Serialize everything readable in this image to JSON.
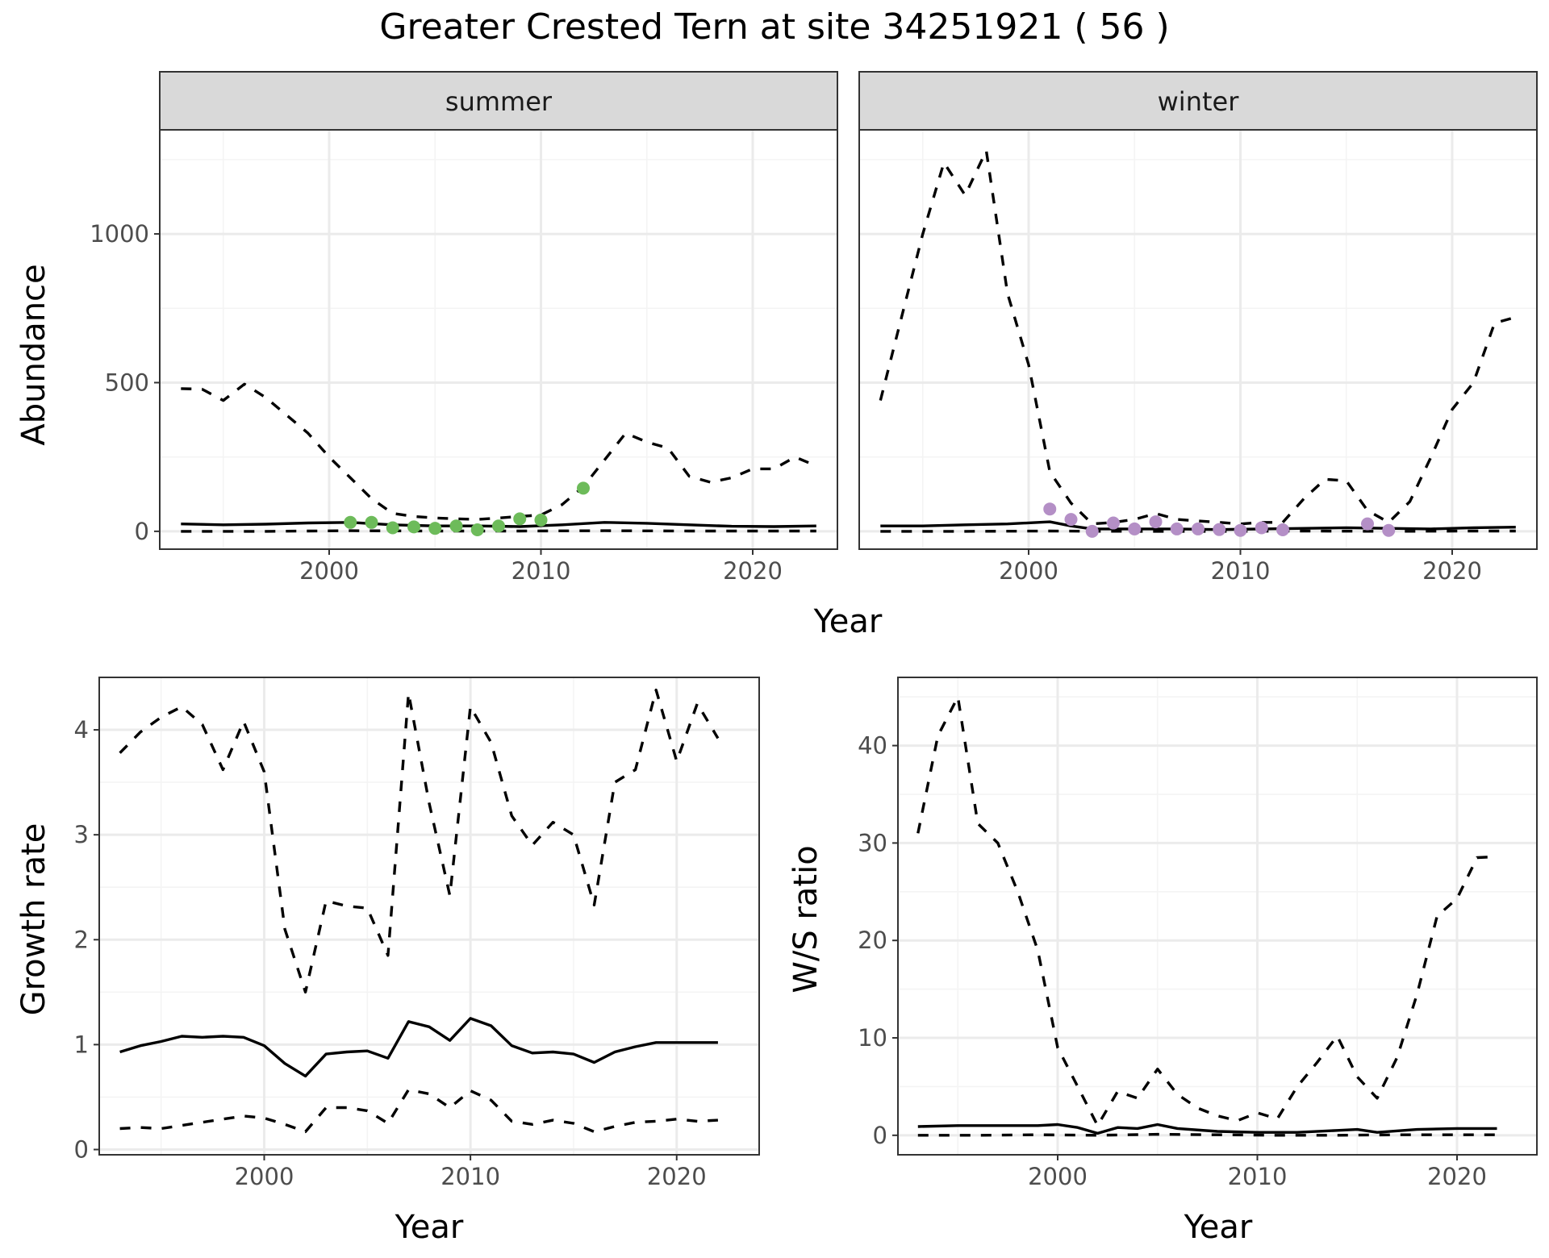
{
  "figure": {
    "title": "Greater Crested Tern at site 34251921 ( 56 )"
  },
  "colors": {
    "summer_points": "#6dbb5a",
    "winter_points": "#b48fc6",
    "lines": "#000000",
    "strip_bg": "#d9d9d9"
  },
  "chart_data": [
    {
      "id": "abundance_summer",
      "type": "line",
      "facet_label": "summer",
      "xlabel": "",
      "ylabel": "Abundance",
      "xlim": [
        1992,
        2024
      ],
      "ylim": [
        -60,
        1350
      ],
      "x_ticks": [
        2000,
        2010,
        2020
      ],
      "y_ticks": [
        0,
        500,
        1000
      ],
      "grid": true,
      "series": [
        {
          "role": "estimate",
          "style": "solid",
          "x": [
            1993,
            1995,
            1997,
            1999,
            2001,
            2003,
            2005,
            2007,
            2009,
            2011,
            2013,
            2015,
            2017,
            2019,
            2021,
            2023
          ],
          "y": [
            25,
            22,
            24,
            28,
            30,
            22,
            18,
            18,
            16,
            22,
            30,
            27,
            22,
            17,
            16,
            18
          ]
        },
        {
          "role": "upper",
          "style": "dashed",
          "x": [
            1993,
            1994,
            1995,
            1996,
            1997,
            1998,
            1999,
            2000,
            2001,
            2002,
            2003,
            2004,
            2005,
            2006,
            2007,
            2008,
            2009,
            2010,
            2011,
            2012,
            2013,
            2014,
            2015,
            2016,
            2017,
            2018,
            2019,
            2020,
            2021,
            2022,
            2023
          ],
          "y": [
            480,
            478,
            440,
            495,
            450,
            390,
            330,
            250,
            180,
            110,
            60,
            50,
            45,
            42,
            40,
            45,
            50,
            55,
            90,
            150,
            240,
            330,
            300,
            280,
            185,
            165,
            180,
            210,
            210,
            250,
            220
          ]
        },
        {
          "role": "lower",
          "style": "dashed",
          "x": [
            1993,
            1997,
            2001,
            2005,
            2009,
            2013,
            2017,
            2021,
            2023
          ],
          "y": [
            0,
            0,
            2,
            1,
            1,
            2,
            1,
            1,
            1
          ]
        },
        {
          "role": "observed",
          "style": "points",
          "x": [
            2001,
            2002,
            2003,
            2004,
            2005,
            2006,
            2007,
            2008,
            2009,
            2010,
            2012
          ],
          "y": [
            30,
            30,
            12,
            15,
            10,
            18,
            5,
            18,
            42,
            38,
            145
          ]
        }
      ]
    },
    {
      "id": "abundance_winter",
      "type": "line",
      "facet_label": "winter",
      "xlabel": "",
      "ylabel": "",
      "xlim": [
        1992,
        2024
      ],
      "ylim": [
        -60,
        1350
      ],
      "x_ticks": [
        2000,
        2010,
        2020
      ],
      "y_ticks": [
        0,
        500,
        1000
      ],
      "grid": true,
      "series": [
        {
          "role": "estimate",
          "style": "solid",
          "x": [
            1993,
            1995,
            1997,
            1999,
            2001,
            2002,
            2003,
            2005,
            2007,
            2009,
            2011,
            2013,
            2015,
            2017,
            2019,
            2021,
            2023
          ],
          "y": [
            18,
            18,
            22,
            25,
            32,
            18,
            8,
            8,
            8,
            6,
            8,
            10,
            12,
            10,
            8,
            12,
            14
          ]
        },
        {
          "role": "upper",
          "style": "dashed",
          "x": [
            1993,
            1994,
            1995,
            1996,
            1997,
            1998,
            1999,
            2000,
            2001,
            2002,
            2003,
            2004,
            2005,
            2006,
            2007,
            2008,
            2009,
            2010,
            2011,
            2012,
            2013,
            2014,
            2015,
            2016,
            2017,
            2018,
            2019,
            2020,
            2021,
            2022,
            2023
          ],
          "y": [
            440,
            720,
            1000,
            1240,
            1130,
            1280,
            800,
            560,
            200,
            95,
            25,
            30,
            40,
            60,
            40,
            35,
            30,
            25,
            30,
            30,
            110,
            175,
            170,
            70,
            30,
            100,
            250,
            410,
            500,
            700,
            720
          ]
        },
        {
          "role": "lower",
          "style": "dashed",
          "x": [
            1993,
            1997,
            2001,
            2005,
            2009,
            2013,
            2017,
            2021,
            2023
          ],
          "y": [
            0,
            0,
            1,
            0,
            0,
            1,
            0,
            1,
            1
          ]
        },
        {
          "role": "observed",
          "style": "points",
          "x": [
            2001,
            2002,
            2003,
            2004,
            2005,
            2006,
            2007,
            2008,
            2009,
            2010,
            2011,
            2012,
            2016,
            2017
          ],
          "y": [
            75,
            40,
            0,
            28,
            8,
            32,
            8,
            8,
            6,
            3,
            12,
            5,
            25,
            3
          ]
        }
      ]
    },
    {
      "id": "growth_rate",
      "type": "line",
      "xlabel": "Year",
      "ylabel": "Growth rate",
      "xlim": [
        1992,
        2024
      ],
      "ylim": [
        -0.05,
        4.5
      ],
      "x_ticks": [
        2000,
        2010,
        2020
      ],
      "y_ticks": [
        0,
        1,
        2,
        3,
        4
      ],
      "grid": true,
      "series": [
        {
          "role": "estimate",
          "style": "solid",
          "x": [
            1993,
            1994,
            1995,
            1996,
            1997,
            1998,
            1999,
            2000,
            2001,
            2002,
            2003,
            2004,
            2005,
            2006,
            2007,
            2008,
            2009,
            2010,
            2011,
            2012,
            2013,
            2014,
            2015,
            2016,
            2017,
            2018,
            2019,
            2020,
            2021,
            2022
          ],
          "y": [
            0.93,
            0.99,
            1.03,
            1.08,
            1.07,
            1.08,
            1.07,
            0.99,
            0.82,
            0.7,
            0.91,
            0.93,
            0.94,
            0.87,
            1.22,
            1.17,
            1.04,
            1.25,
            1.18,
            0.99,
            0.92,
            0.93,
            0.91,
            0.83,
            0.93,
            0.98,
            1.02,
            1.02,
            1.02,
            1.02
          ]
        },
        {
          "role": "upper",
          "style": "dashed",
          "x": [
            1993,
            1994,
            1995,
            1996,
            1997,
            1998,
            1999,
            2000,
            2001,
            2002,
            2003,
            2004,
            2005,
            2006,
            2007,
            2008,
            2009,
            2010,
            2011,
            2012,
            2013,
            2014,
            2015,
            2016,
            2017,
            2018,
            2019,
            2020,
            2021,
            2022
          ],
          "y": [
            3.78,
            3.98,
            4.12,
            4.22,
            4.05,
            3.62,
            4.08,
            3.6,
            2.1,
            1.5,
            2.37,
            2.32,
            2.3,
            1.85,
            4.35,
            3.3,
            2.42,
            4.22,
            3.88,
            3.18,
            2.9,
            3.12,
            3.0,
            2.33,
            3.5,
            3.62,
            4.38,
            3.7,
            4.25,
            3.92
          ]
        },
        {
          "role": "lower",
          "style": "dashed",
          "x": [
            1993,
            1994,
            1995,
            1996,
            1997,
            1998,
            1999,
            2000,
            2001,
            2002,
            2003,
            2004,
            2005,
            2006,
            2007,
            2008,
            2009,
            2010,
            2011,
            2012,
            2013,
            2014,
            2015,
            2016,
            2017,
            2018,
            2019,
            2020,
            2021,
            2022
          ],
          "y": [
            0.2,
            0.21,
            0.2,
            0.23,
            0.26,
            0.29,
            0.32,
            0.3,
            0.24,
            0.17,
            0.4,
            0.4,
            0.37,
            0.25,
            0.57,
            0.53,
            0.4,
            0.56,
            0.47,
            0.27,
            0.24,
            0.28,
            0.25,
            0.17,
            0.22,
            0.26,
            0.27,
            0.29,
            0.27,
            0.28
          ]
        }
      ]
    },
    {
      "id": "ws_ratio",
      "type": "line",
      "xlabel": "Year",
      "ylabel": "W/S ratio",
      "xlim": [
        1992,
        2024
      ],
      "ylim": [
        -2,
        47
      ],
      "x_ticks": [
        2000,
        2010,
        2020
      ],
      "y_ticks": [
        0,
        10,
        20,
        30,
        40
      ],
      "grid": true,
      "series": [
        {
          "role": "estimate",
          "style": "solid",
          "x": [
            1993,
            1995,
            1997,
            1999,
            2000,
            2001,
            2002,
            2003,
            2004,
            2005,
            2006,
            2008,
            2010,
            2012,
            2014,
            2015,
            2016,
            2018,
            2020,
            2022
          ],
          "y": [
            0.9,
            1.0,
            1.0,
            1.0,
            1.1,
            0.8,
            0.2,
            0.8,
            0.7,
            1.1,
            0.7,
            0.4,
            0.3,
            0.3,
            0.5,
            0.6,
            0.3,
            0.6,
            0.7,
            0.7
          ]
        },
        {
          "role": "upper",
          "style": "dashed",
          "x": [
            1993,
            1994,
            1995,
            1996,
            1997,
            1998,
            1999,
            2000,
            2001,
            2002,
            2003,
            2004,
            2005,
            2006,
            2007,
            2008,
            2009,
            2010,
            2011,
            2012,
            2013,
            2014,
            2015,
            2016,
            2017,
            2018,
            2019,
            2020,
            2021,
            2022
          ],
          "y": [
            31,
            41,
            45,
            32,
            30,
            25,
            19,
            9,
            5,
            1,
            4.5,
            3.8,
            6.8,
            4.2,
            2.8,
            2.0,
            1.5,
            2.3,
            1.7,
            5.0,
            7.5,
            10.2,
            6.0,
            3.8,
            8.0,
            14.5,
            22.5,
            24.3,
            28.5,
            28.6
          ]
        },
        {
          "role": "lower",
          "style": "dashed",
          "x": [
            1993,
            1996,
            1999,
            2002,
            2005,
            2008,
            2011,
            2014,
            2017,
            2020,
            2022
          ],
          "y": [
            0,
            0,
            0.05,
            0,
            0.1,
            0.05,
            0,
            0,
            0.05,
            0.05,
            0.05
          ]
        }
      ]
    }
  ]
}
